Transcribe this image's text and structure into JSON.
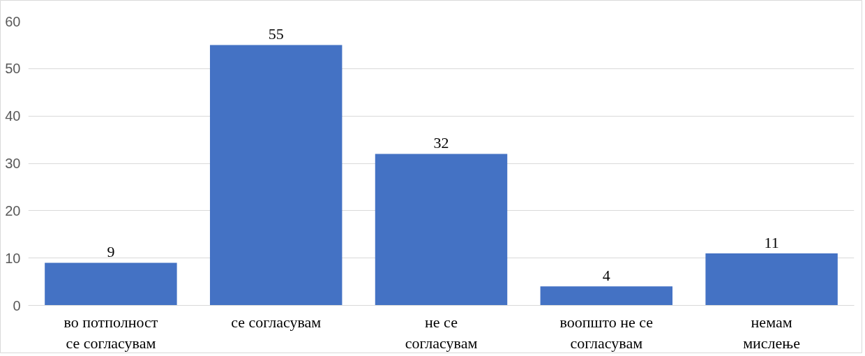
{
  "chart_data": {
    "type": "bar",
    "categories": [
      "во потполност\nсе согласувам",
      "се согласувам",
      "не се\nсогласувам",
      "воопшто не се\nсогласувам",
      "немам\nмислење"
    ],
    "values": [
      9,
      55,
      32,
      4,
      11
    ],
    "color": "#4472c4",
    "ylim": [
      0,
      60
    ],
    "yticks": [
      0,
      10,
      20,
      30,
      40,
      50,
      60
    ],
    "grid": "y",
    "data_labels": true
  }
}
